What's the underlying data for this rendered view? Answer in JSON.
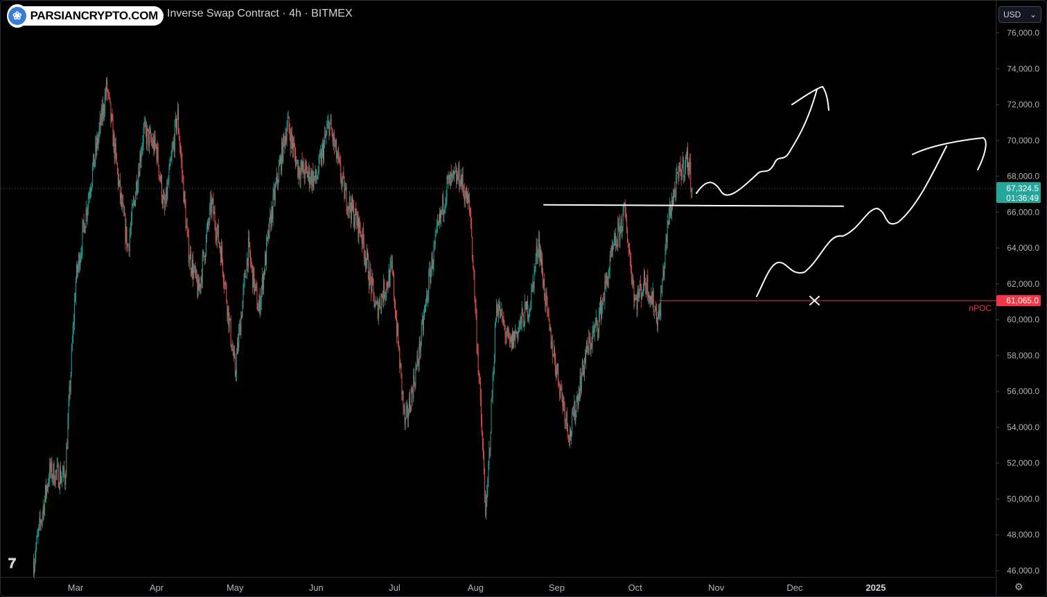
{
  "header": {
    "logo_text": "PARSIANCRYPTO.COM",
    "logo_glyph": "❀",
    "title": "Inverse Swap Contract · 4h · BITMEX"
  },
  "currency_selector": {
    "value": "USD",
    "icon": "chevron-down-icon"
  },
  "colors": {
    "background": "#000000",
    "up": "#26a69a",
    "down": "#ef5350",
    "last_price_badge": "#26a69a",
    "npoc": "#f23645",
    "annotation": "#ffffff"
  },
  "price_axis": {
    "ticks": [
      "76,000.0",
      "74,000.0",
      "72,000.0",
      "70,000.0",
      "68,000.0",
      "66,000.0",
      "64,000.0",
      "62,000.0",
      "60,000.0",
      "58,000.0",
      "56,000.0",
      "54,000.0",
      "52,000.0",
      "50,000.0",
      "48,000.0",
      "46,000.0"
    ]
  },
  "last_price": {
    "value": "67,324.5",
    "countdown": "01:36:49"
  },
  "npoc": {
    "value": "61,065.0",
    "label": "nPOC"
  },
  "chart_data": {
    "type": "candlestick",
    "title": "Inverse Swap Contract · 4h · BITMEX",
    "timeframe": "4h",
    "ylim": [
      45700,
      77000
    ],
    "x_labels": [
      "Mar",
      "Apr",
      "May",
      "Jun",
      "Jul",
      "Aug",
      "Sep",
      "Oct",
      "Nov",
      "Dec",
      "2025"
    ],
    "price_path": [
      {
        "t": "2024-02-14",
        "p": 46500
      },
      {
        "t": "2024-02-20",
        "p": 51500
      },
      {
        "t": "2024-02-26",
        "p": 51200
      },
      {
        "t": "2024-03-01",
        "p": 62000
      },
      {
        "t": "2024-03-06",
        "p": 67000
      },
      {
        "t": "2024-03-13",
        "p": 73000
      },
      {
        "t": "2024-03-18",
        "p": 67000
      },
      {
        "t": "2024-03-21",
        "p": 64000
      },
      {
        "t": "2024-03-27",
        "p": 70500
      },
      {
        "t": "2024-04-01",
        "p": 69500
      },
      {
        "t": "2024-04-04",
        "p": 66000
      },
      {
        "t": "2024-04-09",
        "p": 71500
      },
      {
        "t": "2024-04-13",
        "p": 64000
      },
      {
        "t": "2024-04-17",
        "p": 61500
      },
      {
        "t": "2024-04-22",
        "p": 66500
      },
      {
        "t": "2024-04-26",
        "p": 63500
      },
      {
        "t": "2024-05-01",
        "p": 57000
      },
      {
        "t": "2024-05-06",
        "p": 64000
      },
      {
        "t": "2024-05-10",
        "p": 60500
      },
      {
        "t": "2024-05-15",
        "p": 66000
      },
      {
        "t": "2024-05-21",
        "p": 71000
      },
      {
        "t": "2024-05-25",
        "p": 68500
      },
      {
        "t": "2024-06-01",
        "p": 67800
      },
      {
        "t": "2024-06-06",
        "p": 71000
      },
      {
        "t": "2024-06-12",
        "p": 67000
      },
      {
        "t": "2024-06-18",
        "p": 65000
      },
      {
        "t": "2024-06-24",
        "p": 60500
      },
      {
        "t": "2024-06-30",
        "p": 62800
      },
      {
        "t": "2024-07-05",
        "p": 54000
      },
      {
        "t": "2024-07-10",
        "p": 57800
      },
      {
        "t": "2024-07-15",
        "p": 63000
      },
      {
        "t": "2024-07-21",
        "p": 67500
      },
      {
        "t": "2024-07-26",
        "p": 68000
      },
      {
        "t": "2024-07-30",
        "p": 66000
      },
      {
        "t": "2024-08-05",
        "p": 49000
      },
      {
        "t": "2024-08-09",
        "p": 61000
      },
      {
        "t": "2024-08-14",
        "p": 58500
      },
      {
        "t": "2024-08-22",
        "p": 61000
      },
      {
        "t": "2024-08-25",
        "p": 64500
      },
      {
        "t": "2024-08-29",
        "p": 59500
      },
      {
        "t": "2024-09-06",
        "p": 53500
      },
      {
        "t": "2024-09-12",
        "p": 58000
      },
      {
        "t": "2024-09-17",
        "p": 60000
      },
      {
        "t": "2024-09-22",
        "p": 63500
      },
      {
        "t": "2024-09-27",
        "p": 66000
      },
      {
        "t": "2024-10-01",
        "p": 61000
      },
      {
        "t": "2024-10-05",
        "p": 62200
      },
      {
        "t": "2024-10-10",
        "p": 60000
      },
      {
        "t": "2024-10-14",
        "p": 66000
      },
      {
        "t": "2024-10-18",
        "p": 68200
      },
      {
        "t": "2024-10-21",
        "p": 69000
      },
      {
        "t": "2024-10-23",
        "p": 67300
      }
    ],
    "last_price": 67324.5,
    "npoc_level": 61065,
    "horizontal_line_level": 66350,
    "annotations": [
      "hand-drawn horizontal line at ~66,350",
      "upward arrow path from ~67,000 to ~72,500",
      "second upward arrow path from ~61,500 to ~70,000",
      "x mark at nPOC level"
    ],
    "grid": false
  }
}
